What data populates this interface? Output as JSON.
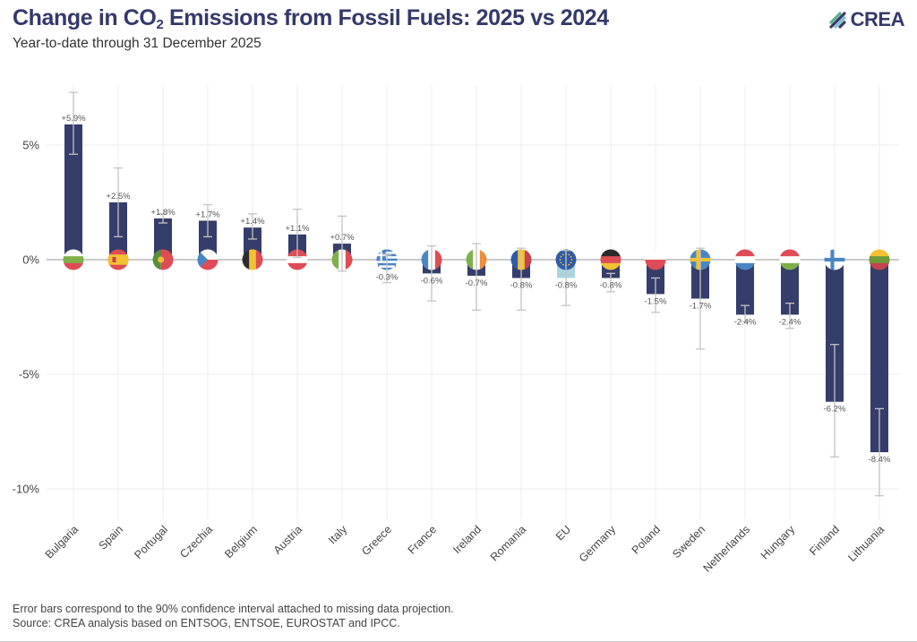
{
  "header": {
    "title_pre": "Change in CO",
    "title_sub": "2",
    "title_post": " Emissions from Fossil Fuels: 2025 vs 2024",
    "subtitle": "Year-to-date through 31 December 2025",
    "logo_text": "CREA",
    "logo_icon": "crea-leaf-logo-icon"
  },
  "footer": {
    "note": "Error bars correspond to the 90% confidence interval attached to missing data projection.",
    "source": "Source: CREA analysis based on ENTSOG, ENTSOE, EUROSTAT and IPCC."
  },
  "colors": {
    "bar": "#353d6b",
    "eu_bar": "#a9d4e0",
    "error_bar": "#c4c4c4",
    "grid": "#ececf2",
    "zero_line": "#b8b8b8"
  },
  "chart_data": {
    "type": "bar",
    "title": "Change in CO2 Emissions from Fossil Fuels: 2025 vs 2024",
    "subtitle": "Year-to-date through 31 December 2025",
    "xlabel": "",
    "ylabel": "",
    "ylim": [
      -11.5,
      8.5
    ],
    "yticks": [
      5,
      0,
      -5,
      -10
    ],
    "ytick_labels": [
      "5%",
      "0%",
      "-5%",
      "-10%"
    ],
    "grid": true,
    "legend": "none",
    "categories": [
      "Bulgaria",
      "Spain",
      "Portugal",
      "Czechia",
      "Belgium",
      "Austria",
      "Italy",
      "Greece",
      "France",
      "Ireland",
      "Romania",
      "EU",
      "Germany",
      "Poland",
      "Sweden",
      "Netherlands",
      "Hungary",
      "Finland",
      "Lithuania"
    ],
    "values": [
      5.9,
      2.5,
      1.8,
      1.7,
      1.4,
      1.1,
      0.7,
      -0.3,
      -0.6,
      -0.7,
      -0.8,
      -0.8,
      -0.8,
      -1.5,
      -1.7,
      -2.4,
      -2.4,
      -6.2,
      -8.4
    ],
    "value_labels": [
      "+5.9%",
      "+2.5%",
      "+1.8%",
      "+1.7%",
      "+1.4%",
      "+1.1%",
      "+0.7%",
      "-0.3%",
      "-0.6%",
      "-0.7%",
      "-0.8%",
      "-0.8%",
      "-0.8%",
      "-1.5%",
      "-1.7%",
      "-2.4%",
      "-2.4%",
      "-6.2%",
      "-8.4%"
    ],
    "error_low": [
      4.6,
      1.0,
      1.6,
      1.0,
      0.9,
      0.1,
      -0.5,
      -1.0,
      -1.8,
      -2.2,
      -2.2,
      -2.0,
      -1.4,
      -2.3,
      -3.9,
      -2.7,
      -3.0,
      -8.6,
      -10.3
    ],
    "error_high": [
      7.3,
      4.0,
      2.0,
      2.4,
      2.0,
      2.2,
      1.9,
      0.2,
      0.6,
      0.7,
      0.5,
      0.4,
      -0.6,
      -0.8,
      0.5,
      -2.0,
      -1.9,
      -3.7,
      -6.5
    ],
    "highlight": [
      "EU"
    ],
    "flags": {
      "Bulgaria": {
        "type": "h",
        "colors": [
          "#ffffff",
          "#7fb04a",
          "#df4c55"
        ]
      },
      "Spain": {
        "type": "h3",
        "colors": [
          "#df4c55",
          "#f1c232",
          "#df4c55"
        ]
      },
      "Portugal": {
        "type": "v2",
        "colors": [
          "#5a8f3a",
          "#df4c55"
        ]
      },
      "Czechia": {
        "type": "cz",
        "colors": [
          "#ffffff",
          "#df4c55",
          "#4a86c5"
        ]
      },
      "Belgium": {
        "type": "v",
        "colors": [
          "#2b2b2b",
          "#f1c232",
          "#df4c55"
        ]
      },
      "Austria": {
        "type": "h",
        "colors": [
          "#df4c55",
          "#ffffff",
          "#df4c55"
        ]
      },
      "Italy": {
        "type": "v",
        "colors": [
          "#7fb04a",
          "#ffffff",
          "#df4c55"
        ]
      },
      "Greece": {
        "type": "gr",
        "colors": [
          "#4a86c5",
          "#ffffff"
        ]
      },
      "France": {
        "type": "v",
        "colors": [
          "#4a86c5",
          "#ffffff",
          "#df4c55"
        ]
      },
      "Ireland": {
        "type": "v",
        "colors": [
          "#7fb04a",
          "#ffffff",
          "#ed8e3e"
        ]
      },
      "Romania": {
        "type": "v",
        "colors": [
          "#2f5ba6",
          "#f1c232",
          "#c6424d"
        ]
      },
      "EU": {
        "type": "eu",
        "colors": [
          "#2f5ba6",
          "#f1c232"
        ]
      },
      "Germany": {
        "type": "h",
        "colors": [
          "#2b2b2b",
          "#df4c55",
          "#f1c232"
        ]
      },
      "Poland": {
        "type": "h2",
        "colors": [
          "#ffffff",
          "#df4c55"
        ]
      },
      "Sweden": {
        "type": "nordic",
        "colors": [
          "#4a86c5",
          "#f1c232"
        ]
      },
      "Netherlands": {
        "type": "h",
        "colors": [
          "#df4c55",
          "#ffffff",
          "#4a86c5"
        ]
      },
      "Hungary": {
        "type": "h",
        "colors": [
          "#df4c55",
          "#ffffff",
          "#7fb04a"
        ]
      },
      "Finland": {
        "type": "nordic",
        "colors": [
          "#ffffff",
          "#4a86c5"
        ]
      },
      "Lithuania": {
        "type": "h",
        "colors": [
          "#f1c232",
          "#6f9a3a",
          "#c6424d"
        ]
      }
    }
  }
}
